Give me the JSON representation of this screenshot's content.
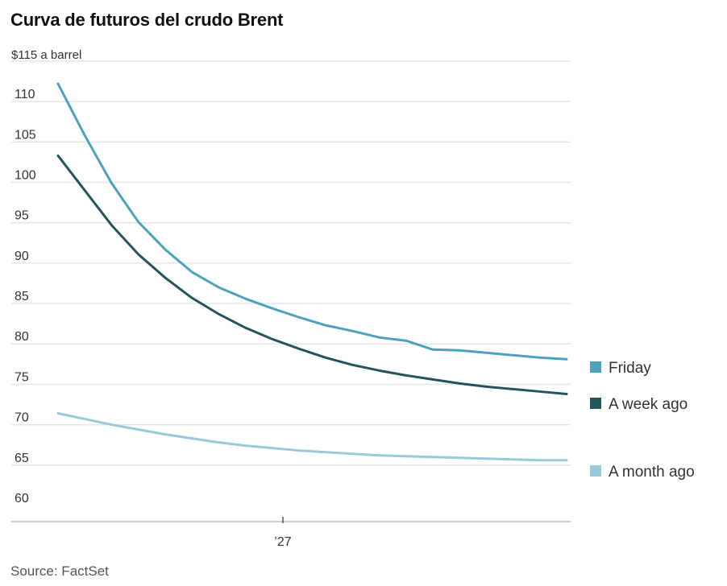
{
  "chart_data": {
    "type": "line",
    "title": "Curva de futuros del crudo Brent",
    "unit_label": "$115 a barrel",
    "source": "Source: FactSet",
    "ylim": [
      58,
      115
    ],
    "y_ticks": [
      60,
      65,
      70,
      75,
      80,
      85,
      90,
      95,
      100,
      105,
      110
    ],
    "y_tick_labels": [
      "60",
      "65",
      "70",
      "75",
      "80",
      "85",
      "90",
      "95",
      "100",
      "105",
      "110"
    ],
    "xlim": [
      0,
      20
    ],
    "x_ticks": [
      {
        "value": 8.4,
        "label": "’27"
      }
    ],
    "x": [
      0,
      1,
      2,
      3,
      4,
      5,
      6,
      7,
      8,
      9,
      10,
      11,
      12,
      13,
      14,
      15,
      16,
      17,
      18,
      19
    ],
    "series": [
      {
        "name": "Friday",
        "color": "#4da3bd",
        "values": [
          112.2,
          105.8,
          99.9,
          95.1,
          91.7,
          88.9,
          87.0,
          85.6,
          84.4,
          83.3,
          82.3,
          81.6,
          80.8,
          80.4,
          79.3,
          79.2,
          78.9,
          78.6,
          78.3,
          78.1
        ]
      },
      {
        "name": "A week ago",
        "color": "#24555f",
        "values": [
          103.3,
          99.0,
          94.7,
          91.1,
          88.2,
          85.7,
          83.7,
          82.0,
          80.6,
          79.4,
          78.3,
          77.4,
          76.7,
          76.1,
          75.6,
          75.1,
          74.7,
          74.4,
          74.1,
          73.8
        ]
      },
      {
        "name": "A month ago",
        "color": "#98cad9",
        "values": [
          71.4,
          70.7,
          70.0,
          69.4,
          68.8,
          68.3,
          67.8,
          67.4,
          67.1,
          66.8,
          66.6,
          66.4,
          66.2,
          66.1,
          66.0,
          65.9,
          65.8,
          65.7,
          65.6,
          65.6
        ]
      }
    ],
    "legend": "right",
    "grid": true
  }
}
